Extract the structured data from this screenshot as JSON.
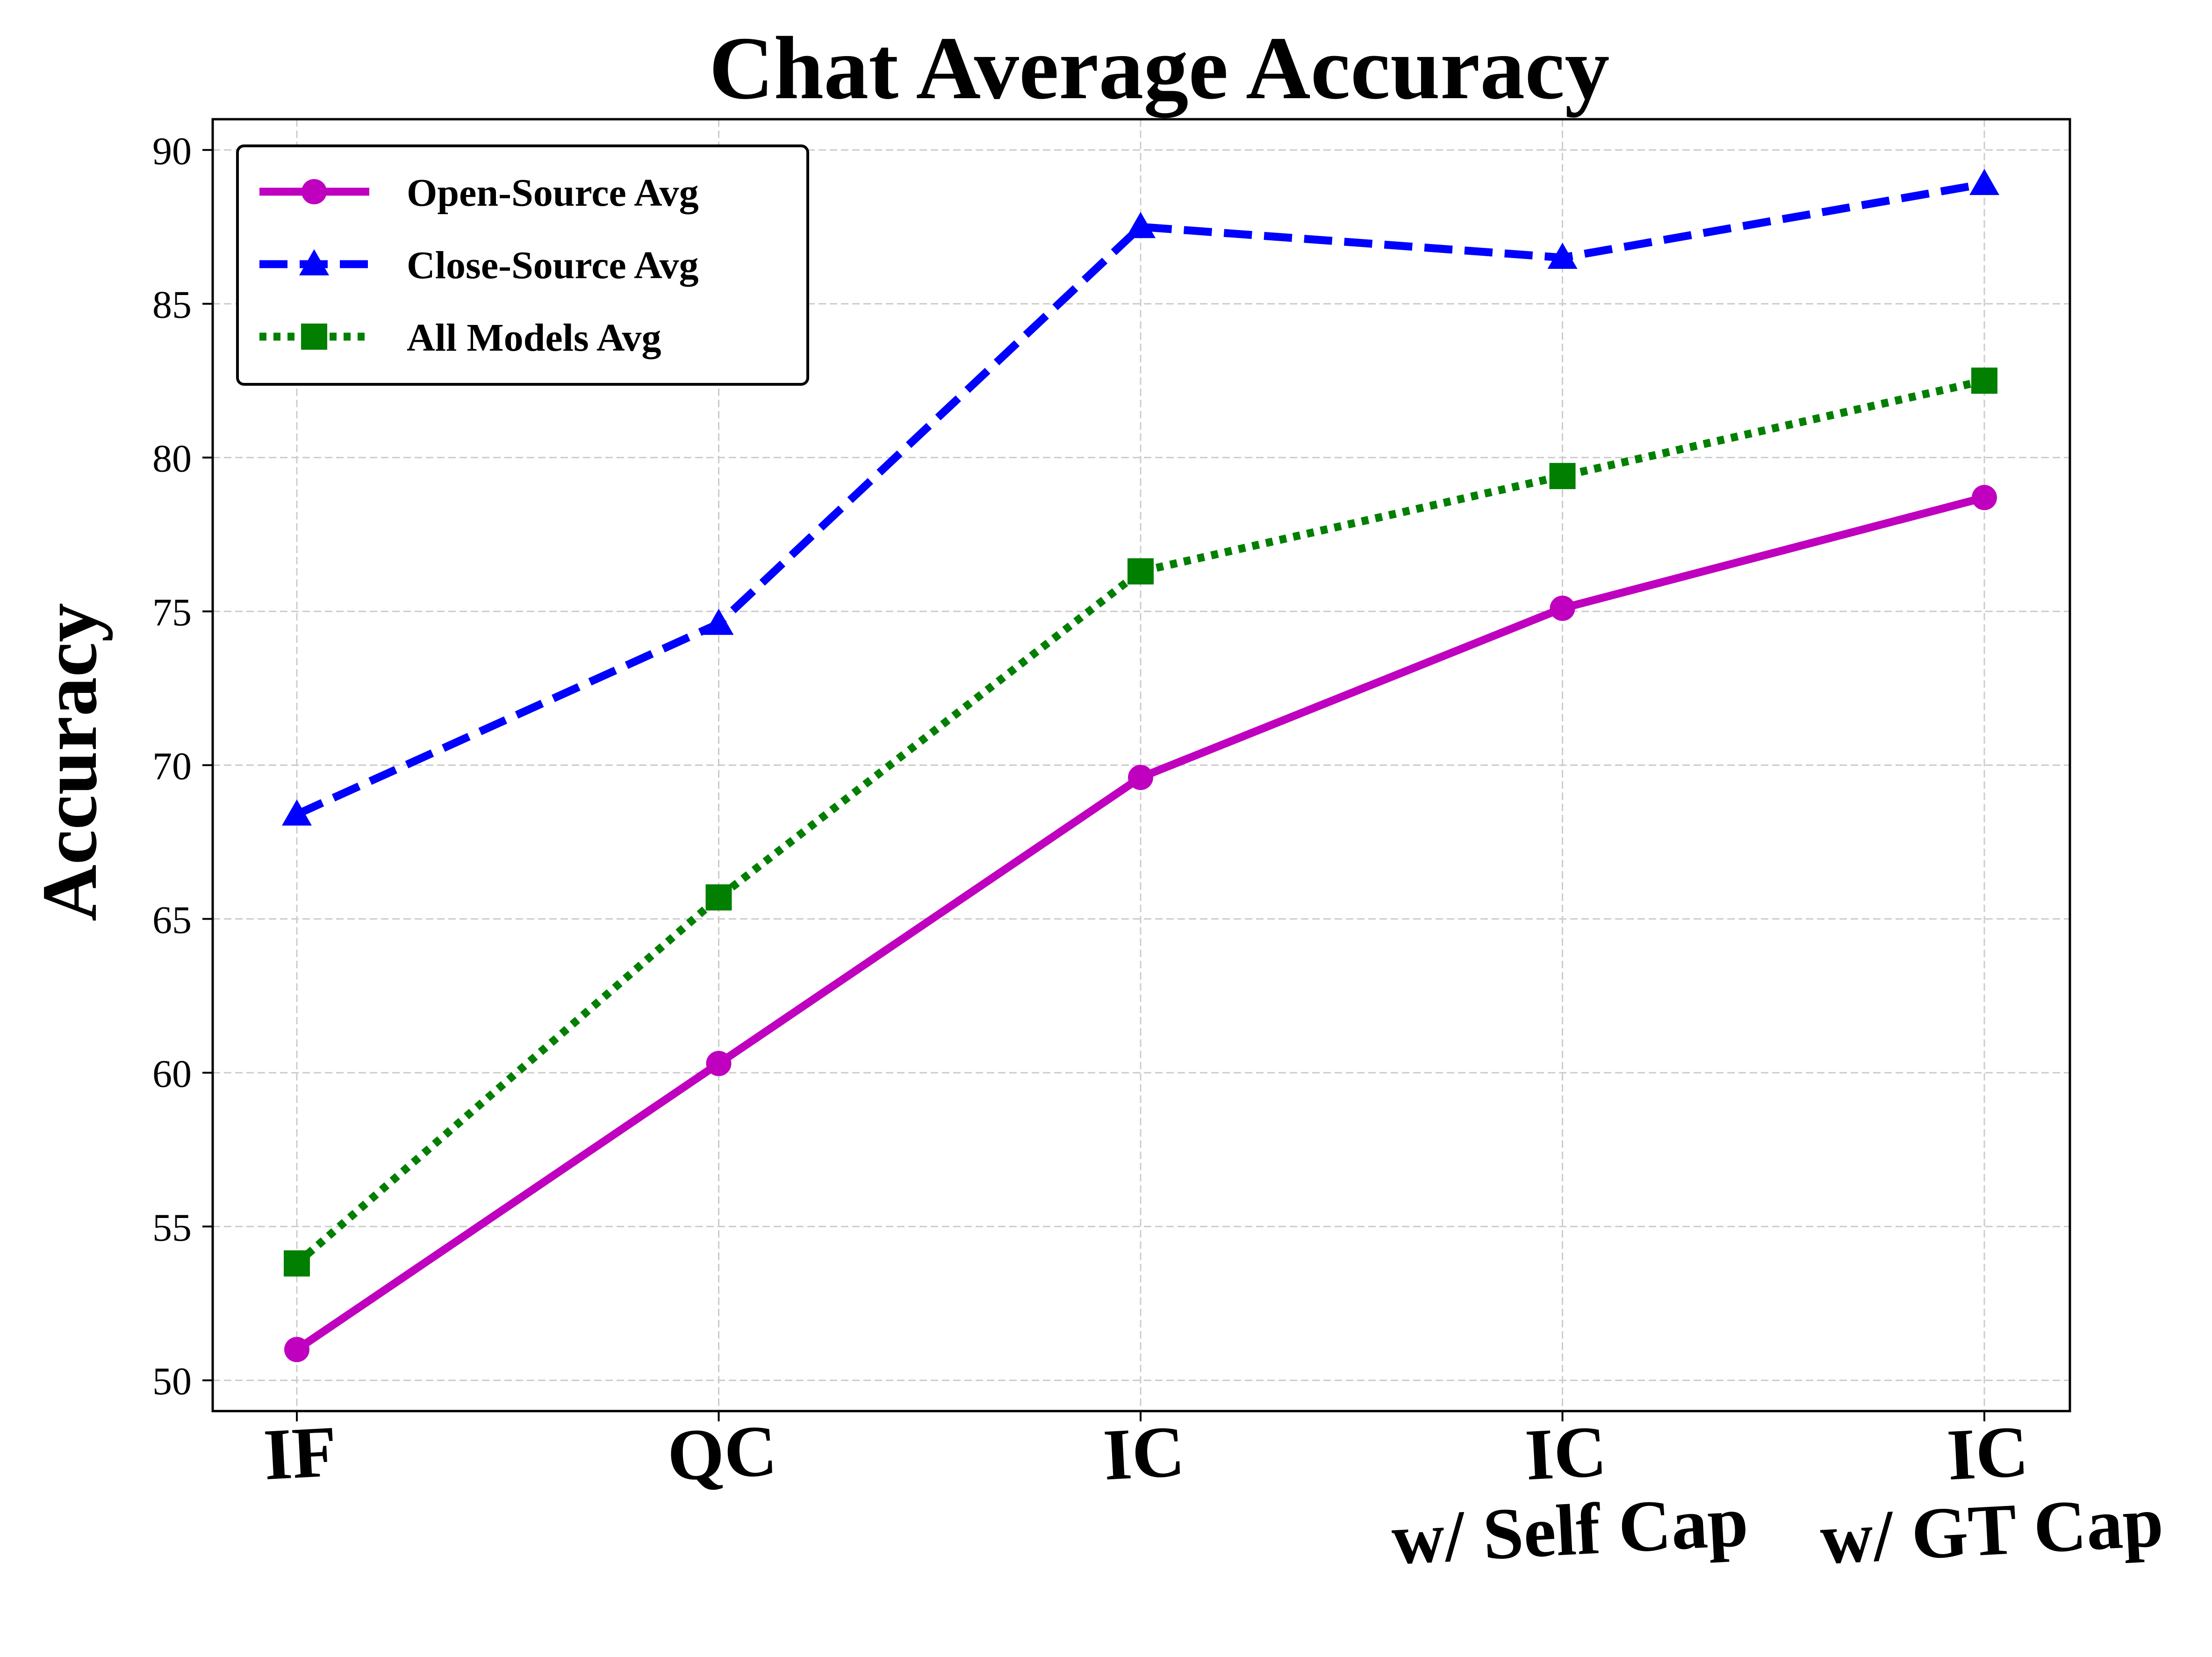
{
  "chart_data": {
    "type": "line",
    "title": "Chat Average Accuracy",
    "xlabel": "",
    "ylabel": "Accuracy",
    "categories": [
      [
        "IF"
      ],
      [
        "QC"
      ],
      [
        "IC"
      ],
      [
        "IC",
        "w/ Self Cap"
      ],
      [
        "IC",
        "w/ GT Cap"
      ]
    ],
    "ylim": [
      49,
      91
    ],
    "yticks": [
      50,
      55,
      60,
      65,
      70,
      75,
      80,
      85,
      90
    ],
    "grid": true,
    "legend_position": "top-left",
    "series": [
      {
        "name": "Open-Source Avg",
        "color": "#BF00BF",
        "marker": "circle",
        "line_style": "solid",
        "values": [
          51.0,
          60.3,
          69.6,
          75.1,
          78.7
        ]
      },
      {
        "name": "Close-Source Avg",
        "color": "#0000FF",
        "marker": "triangle",
        "line_style": "dashed",
        "values": [
          68.4,
          74.6,
          87.5,
          86.5,
          88.9
        ]
      },
      {
        "name": "All Models Avg",
        "color": "#007F00",
        "marker": "square",
        "line_style": "dotted",
        "values": [
          53.8,
          65.7,
          76.3,
          79.4,
          82.5
        ]
      }
    ]
  }
}
